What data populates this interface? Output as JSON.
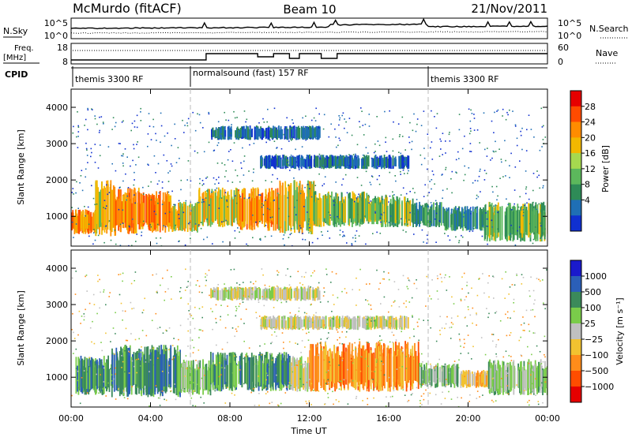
{
  "header": {
    "station": "McMurdo (fitACF)",
    "beam": "Beam 10",
    "date": "21/Nov/2011"
  },
  "noise_panel": {
    "left_label": "N.Sky",
    "right_label": "N.Search",
    "left_ticks": [
      "10^5",
      "10^0"
    ],
    "right_ticks": [
      "10^5",
      "10^0"
    ]
  },
  "freq_panel": {
    "left_label_1": "Freq.",
    "left_label_2": "[MHz]",
    "left_ticks": [
      "18",
      "8"
    ],
    "right_label": "Nave",
    "right_ticks": [
      "60",
      "0"
    ]
  },
  "cpid": {
    "label": "CPID",
    "segments": [
      {
        "text": "themis 3300 RF",
        "start_hour": 0
      },
      {
        "text": "normalsound (fast) 157 RF",
        "start_hour": 6
      },
      {
        "text": "themis 3300 RF",
        "start_hour": 18
      }
    ]
  },
  "power_colorbar": {
    "label": "Power [dB]",
    "ticks": [
      "28",
      "24",
      "20",
      "16",
      "12",
      "8",
      "4"
    ],
    "colors": [
      "#e60000",
      "#ff4b00",
      "#ff8c00",
      "#f2b800",
      "#a6d94f",
      "#5cb85c",
      "#2e8b57",
      "#1f6fb5",
      "#1030d0"
    ]
  },
  "velocity_colorbar": {
    "label": "Velocity [m s⁻¹]",
    "ticks": [
      "1000",
      "500",
      "100",
      "25",
      "−25",
      "−100",
      "−500",
      "−1000"
    ],
    "colors": [
      "#1a1acc",
      "#2b5fb8",
      "#3b8a5a",
      "#7acc4a",
      "#c0c0c0",
      "#f2c230",
      "#ff8c1a",
      "#ff4d00",
      "#e60000"
    ]
  },
  "chart_data": [
    {
      "type": "heatmap",
      "title": "",
      "xlabel": "",
      "ylabel": "Slant Range [km]",
      "xlim": [
        0,
        24
      ],
      "ylim": [
        180,
        4500
      ],
      "yticks": [
        "4000",
        "3000",
        "2000",
        "1000"
      ],
      "ytick_values": [
        4000,
        3000,
        2000,
        1000
      ],
      "colorbar": "Power [dB]",
      "grid": false,
      "echo_bands": [
        {
          "x0": 0.0,
          "x1": 1.2,
          "y0": 500,
          "y1": 1200,
          "level": 5
        },
        {
          "x0": 1.2,
          "x1": 2.2,
          "y0": 450,
          "y1": 2000,
          "level": 4
        },
        {
          "x0": 2.2,
          "x1": 3.4,
          "y0": 500,
          "y1": 1800,
          "level": 5
        },
        {
          "x0": 3.4,
          "x1": 5.0,
          "y0": 550,
          "y1": 1700,
          "level": 5
        },
        {
          "x0": 5.0,
          "x1": 6.4,
          "y0": 550,
          "y1": 1400,
          "level": 4
        },
        {
          "x0": 6.4,
          "x1": 8.4,
          "y0": 700,
          "y1": 1800,
          "level": 4
        },
        {
          "x0": 8.4,
          "x1": 10.4,
          "y0": 600,
          "y1": 1800,
          "level": 5
        },
        {
          "x0": 10.4,
          "x1": 12.2,
          "y0": 500,
          "y1": 2000,
          "level": 4
        },
        {
          "x0": 12.2,
          "x1": 15.0,
          "y0": 700,
          "y1": 1700,
          "level": 3
        },
        {
          "x0": 15.0,
          "x1": 17.2,
          "y0": 700,
          "y1": 1600,
          "level": 3
        },
        {
          "x0": 17.2,
          "x1": 18.8,
          "y0": 700,
          "y1": 1400,
          "level": 2
        },
        {
          "x0": 18.8,
          "x1": 20.8,
          "y0": 600,
          "y1": 1300,
          "level": 2
        },
        {
          "x0": 20.8,
          "x1": 24.0,
          "y0": 300,
          "y1": 1400,
          "level": 3
        },
        {
          "x0": 7.0,
          "x1": 12.5,
          "y0": 3100,
          "y1": 3500,
          "level": 1
        },
        {
          "x0": 9.5,
          "x1": 17.0,
          "y0": 2300,
          "y1": 2700,
          "level": 1
        }
      ]
    },
    {
      "type": "heatmap",
      "title": "",
      "xlabel": "Time UT",
      "ylabel": "Slant Range [km]",
      "xlim": [
        0,
        24
      ],
      "ylim": [
        180,
        4500
      ],
      "xticks": [
        "00:00",
        "04:00",
        "08:00",
        "12:00",
        "16:00",
        "20:00",
        "00:00"
      ],
      "xtick_values": [
        0,
        4,
        8,
        12,
        16,
        20,
        24
      ],
      "yticks": [
        "4000",
        "3000",
        "2000",
        "1000"
      ],
      "ytick_values": [
        4000,
        3000,
        2000,
        1000
      ],
      "colorbar": "Velocity [m s⁻¹]",
      "grid": false,
      "echo_bands": [
        {
          "x0": 0.2,
          "x1": 2.0,
          "y0": 500,
          "y1": 1600,
          "level": 2
        },
        {
          "x0": 2.0,
          "x1": 5.5,
          "y0": 450,
          "y1": 1900,
          "level": 2
        },
        {
          "x0": 5.5,
          "x1": 7.0,
          "y0": 500,
          "y1": 1500,
          "level": 3
        },
        {
          "x0": 7.0,
          "x1": 11.0,
          "y0": 600,
          "y1": 1700,
          "level": 2
        },
        {
          "x0": 11.0,
          "x1": 12.0,
          "y0": 600,
          "y1": 1600,
          "level": 4
        },
        {
          "x0": 12.0,
          "x1": 17.5,
          "y0": 600,
          "y1": 2000,
          "level": 6
        },
        {
          "x0": 17.5,
          "x1": 19.5,
          "y0": 700,
          "y1": 1400,
          "level": 3
        },
        {
          "x0": 19.5,
          "x1": 21.0,
          "y0": 700,
          "y1": 1200,
          "level": 5
        },
        {
          "x0": 21.0,
          "x1": 24.0,
          "y0": 500,
          "y1": 1500,
          "level": 3
        },
        {
          "x0": 7.0,
          "x1": 12.5,
          "y0": 3100,
          "y1": 3500,
          "level": 4
        },
        {
          "x0": 9.5,
          "x1": 17.0,
          "y0": 2300,
          "y1": 2700,
          "level": 4
        }
      ]
    }
  ]
}
